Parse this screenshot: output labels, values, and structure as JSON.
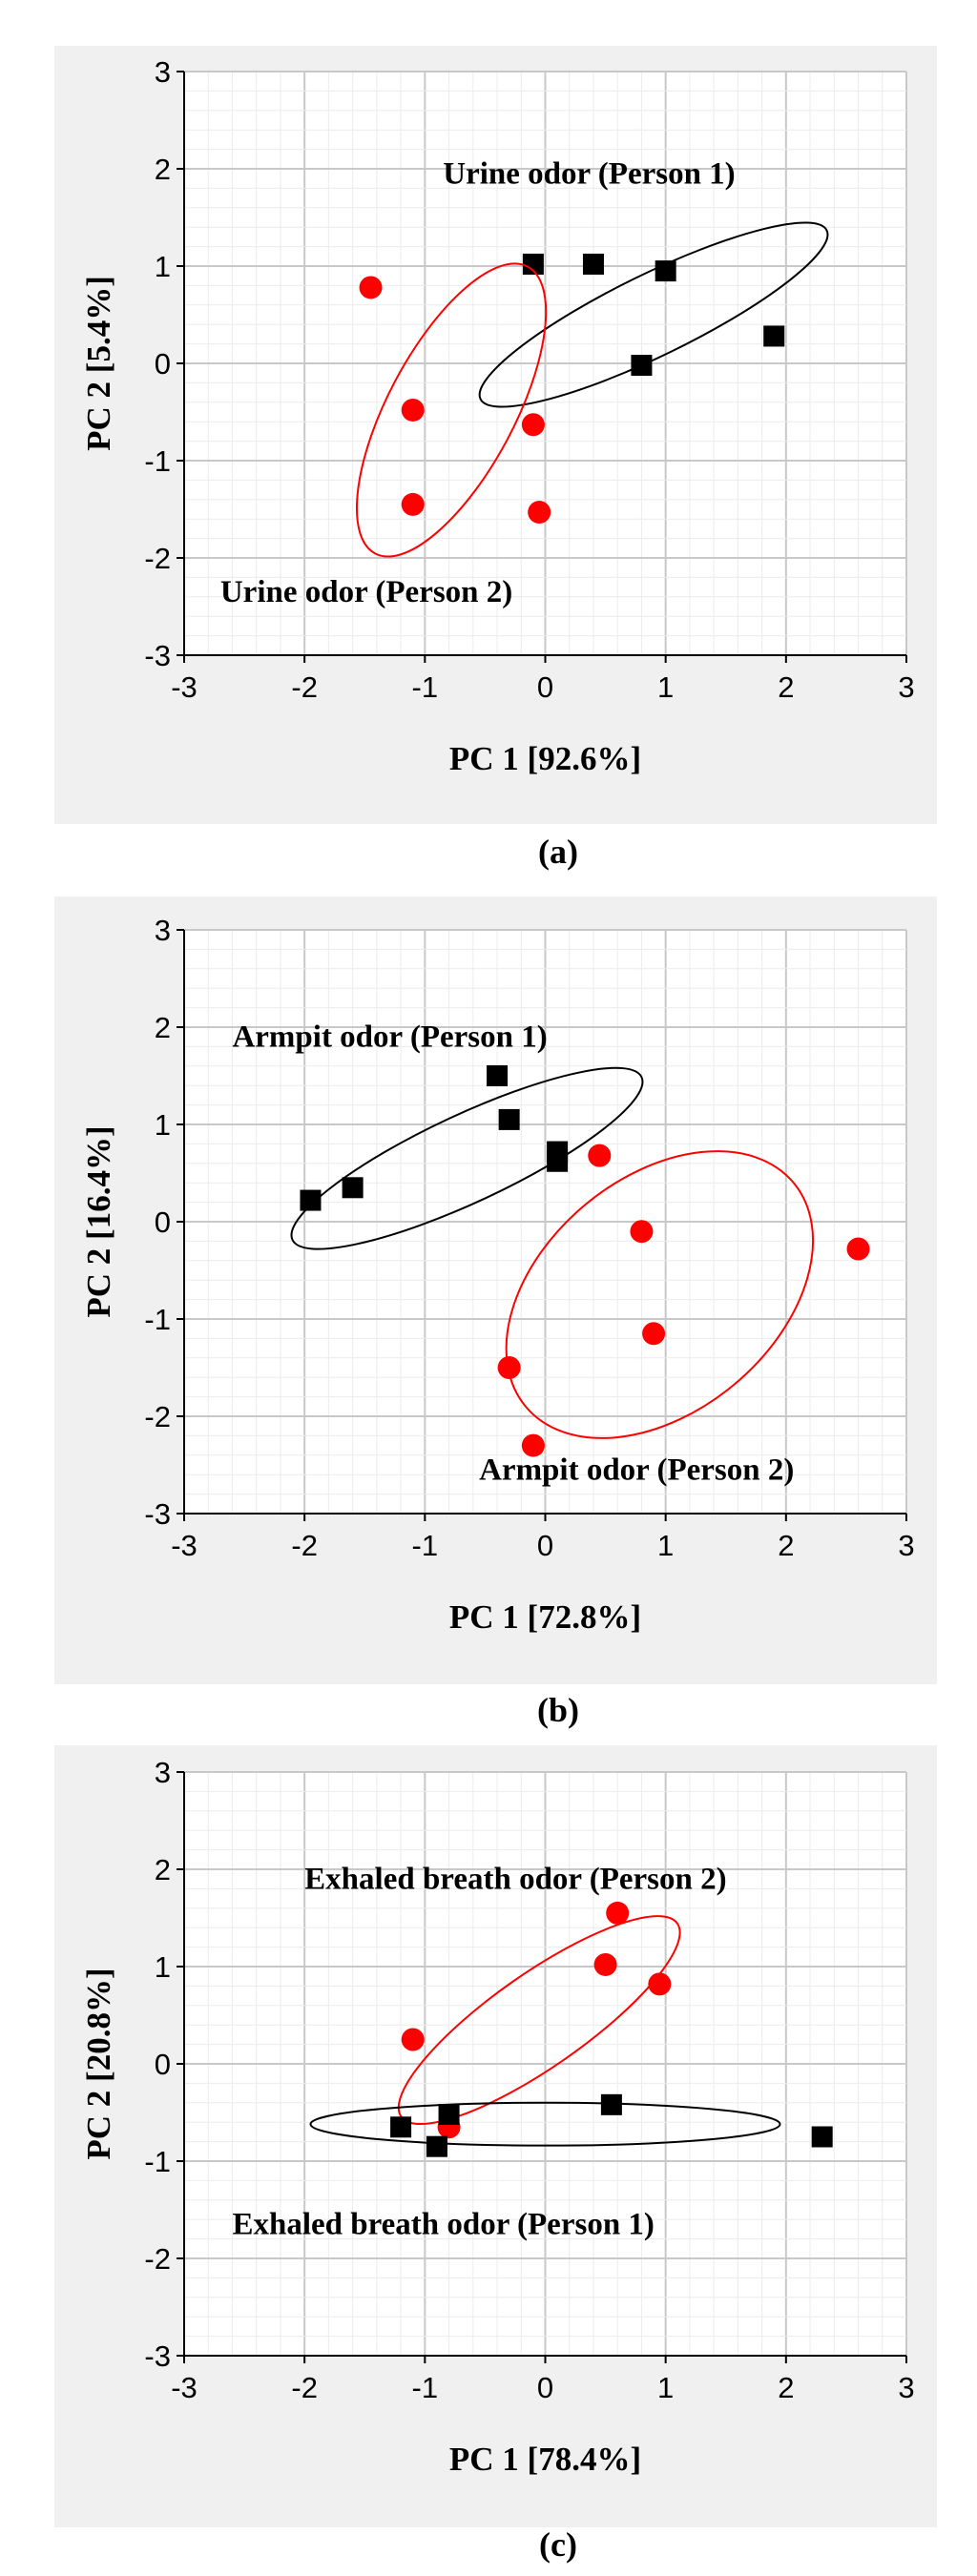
{
  "chart_data": [
    {
      "type": "scatter",
      "caption": "(a)",
      "xlabel": "PC 1 [92.6%]",
      "ylabel": "PC 2 [5.4%]",
      "xlim": [
        -3,
        3
      ],
      "ylim": [
        -3,
        3
      ],
      "xticks": [
        -3,
        -2,
        -1,
        0,
        1,
        2,
        3
      ],
      "yticks": [
        -3,
        -2,
        -1,
        0,
        1,
        2,
        3
      ],
      "grid": true,
      "series": [
        {
          "marker": "square",
          "color": "#000000",
          "points": [
            [
              -0.1,
              1.02
            ],
            [
              0.4,
              1.02
            ],
            [
              1.0,
              0.95
            ],
            [
              1.9,
              0.28
            ],
            [
              0.8,
              -0.02
            ]
          ],
          "ellipse": {
            "cx": 0.9,
            "cy": 0.5,
            "rx": 1.6,
            "ry": 0.42,
            "angle": -26
          }
        },
        {
          "marker": "circle",
          "color": "#ff0000",
          "points": [
            [
              -1.45,
              0.78
            ],
            [
              -1.1,
              -0.48
            ],
            [
              -0.1,
              -0.63
            ],
            [
              -1.1,
              -1.45
            ],
            [
              -0.05,
              -1.53
            ]
          ],
          "ellipse": {
            "cx": -0.78,
            "cy": -0.48,
            "rx": 1.35,
            "ry": 0.65,
            "angle": -62
          }
        }
      ],
      "annotations": [
        {
          "text": "Urine odor (Person 1)",
          "x": -0.85,
          "y": 1.85
        },
        {
          "text": "Urine odor (Person 2)",
          "x": -2.7,
          "y": -2.45
        }
      ]
    },
    {
      "type": "scatter",
      "caption": "(b)",
      "xlabel": "PC 1 [72.8%]",
      "ylabel": "PC 2 [16.4%]",
      "xlim": [
        -3,
        3
      ],
      "ylim": [
        -3,
        3
      ],
      "xticks": [
        -3,
        -2,
        -1,
        0,
        1,
        2,
        3
      ],
      "yticks": [
        -3,
        -2,
        -1,
        0,
        1,
        2,
        3
      ],
      "grid": true,
      "series": [
        {
          "marker": "square",
          "color": "#000000",
          "points": [
            [
              -1.95,
              0.22
            ],
            [
              -1.6,
              0.35
            ],
            [
              -0.4,
              1.5
            ],
            [
              -0.3,
              1.05
            ],
            [
              0.1,
              0.72
            ],
            [
              0.1,
              0.62
            ]
          ],
          "ellipse": {
            "cx": -0.65,
            "cy": 0.65,
            "rx": 1.6,
            "ry": 0.45,
            "angle": -25
          }
        },
        {
          "marker": "circle",
          "color": "#ff0000",
          "points": [
            [
              0.45,
              0.68
            ],
            [
              0.8,
              -0.1
            ],
            [
              2.6,
              -0.28
            ],
            [
              -0.3,
              -1.5
            ],
            [
              0.9,
              -1.15
            ],
            [
              -0.1,
              -2.3
            ]
          ],
          "ellipse": {
            "cx": 0.95,
            "cy": -0.75,
            "rx": 1.45,
            "ry": 1.2,
            "angle": -40
          }
        }
      ],
      "annotations": [
        {
          "text": "Armpit odor (Person 1)",
          "x": -2.6,
          "y": 1.8
        },
        {
          "text": "Armpit odor (Person 2)",
          "x": -0.55,
          "y": -2.65
        }
      ]
    },
    {
      "type": "scatter",
      "caption": "(c)",
      "xlabel": "PC 1 [78.4%]",
      "ylabel": "PC 2 [20.8%]",
      "xlim": [
        -3,
        3
      ],
      "ylim": [
        -3,
        3
      ],
      "xticks": [
        -3,
        -2,
        -1,
        0,
        1,
        2,
        3
      ],
      "yticks": [
        -3,
        -2,
        -1,
        0,
        1,
        2,
        3
      ],
      "grid": true,
      "series": [
        {
          "marker": "circle",
          "color": "#ff0000",
          "points": [
            [
              -1.1,
              0.25
            ],
            [
              0.6,
              1.55
            ],
            [
              0.5,
              1.02
            ],
            [
              0.95,
              0.82
            ],
            [
              -0.8,
              -0.65
            ]
          ],
          "ellipse": {
            "cx": -0.05,
            "cy": 0.45,
            "rx": 1.4,
            "ry": 0.48,
            "angle": -35
          }
        },
        {
          "marker": "square",
          "color": "#000000",
          "points": [
            [
              -1.2,
              -0.65
            ],
            [
              -0.8,
              -0.52
            ],
            [
              -0.9,
              -0.85
            ],
            [
              0.55,
              -0.42
            ],
            [
              2.3,
              -0.75
            ]
          ],
          "ellipse": {
            "cx": 0.0,
            "cy": -0.62,
            "rx": 1.95,
            "ry": 0.22,
            "angle": 0
          }
        }
      ],
      "annotations": [
        {
          "text": "Exhaled breath odor (Person 2)",
          "x": -2.0,
          "y": 1.8
        },
        {
          "text": "Exhaled breath odor (Person 1)",
          "x": -2.6,
          "y": -1.75
        }
      ]
    }
  ]
}
